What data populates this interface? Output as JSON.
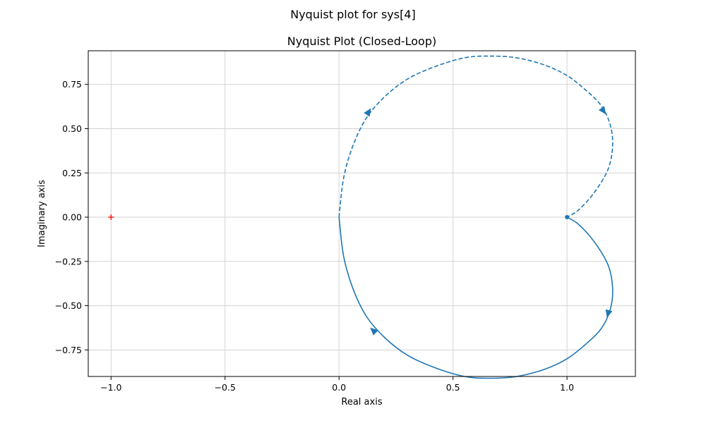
{
  "figure_title": "Nyquist plot for sys[4]",
  "chart_data": {
    "type": "line",
    "title": "Nyquist Plot (Closed-Loop)",
    "xlabel": "Real axis",
    "ylabel": "Imaginary axis",
    "xlim": [
      -1.1,
      1.3
    ],
    "ylim": [
      -0.9,
      0.94
    ],
    "xticks": [
      -1.0,
      -0.5,
      0.0,
      0.5,
      1.0
    ],
    "xtick_labels": [
      "−1.0",
      "−0.5",
      "0.0",
      "0.5",
      "1.0"
    ],
    "yticks": [
      -0.75,
      -0.5,
      -0.25,
      0.0,
      0.25,
      0.5,
      0.75
    ],
    "ytick_labels": [
      "−0.75",
      "−0.50",
      "−0.25",
      "0.00",
      "0.25",
      "0.50",
      "0.75"
    ],
    "grid": true,
    "critical_point": {
      "x": -1.0,
      "y": 0.0,
      "marker": "+",
      "color": "#ff0000"
    },
    "series": [
      {
        "style": "solid",
        "color": "#1f77b4",
        "x": [
          1.0,
          1.05,
          1.12,
          1.18,
          1.2,
          1.19,
          1.15,
          1.08,
          1.0,
          0.9,
          0.78,
          0.66,
          0.55,
          0.42,
          0.3,
          0.2,
          0.12,
          0.06,
          0.02,
          0.0
        ],
        "y": [
          0.0,
          -0.04,
          -0.14,
          -0.27,
          -0.4,
          -0.52,
          -0.63,
          -0.72,
          -0.8,
          -0.86,
          -0.9,
          -0.91,
          -0.9,
          -0.85,
          -0.78,
          -0.68,
          -0.56,
          -0.4,
          -0.22,
          0.0
        ],
        "arrows": [
          {
            "x": 1.18,
            "y": -0.545,
            "dir": "down"
          },
          {
            "x": 0.15,
            "y": -0.64,
            "dir": "up"
          }
        ]
      },
      {
        "style": "dashed",
        "color": "#1f77b4",
        "x": [
          0.0,
          0.02,
          0.06,
          0.12,
          0.2,
          0.3,
          0.42,
          0.55,
          0.66,
          0.78,
          0.9,
          1.0,
          1.08,
          1.15,
          1.19,
          1.2,
          1.18,
          1.12,
          1.05,
          1.0
        ],
        "y": [
          0.0,
          0.22,
          0.4,
          0.56,
          0.68,
          0.78,
          0.85,
          0.9,
          0.91,
          0.9,
          0.86,
          0.8,
          0.72,
          0.63,
          0.52,
          0.4,
          0.27,
          0.14,
          0.04,
          0.0
        ],
        "arrows": [
          {
            "x": 0.13,
            "y": 0.595,
            "dir": "up"
          },
          {
            "x": 1.16,
            "y": 0.6,
            "dir": "down"
          }
        ]
      }
    ]
  }
}
